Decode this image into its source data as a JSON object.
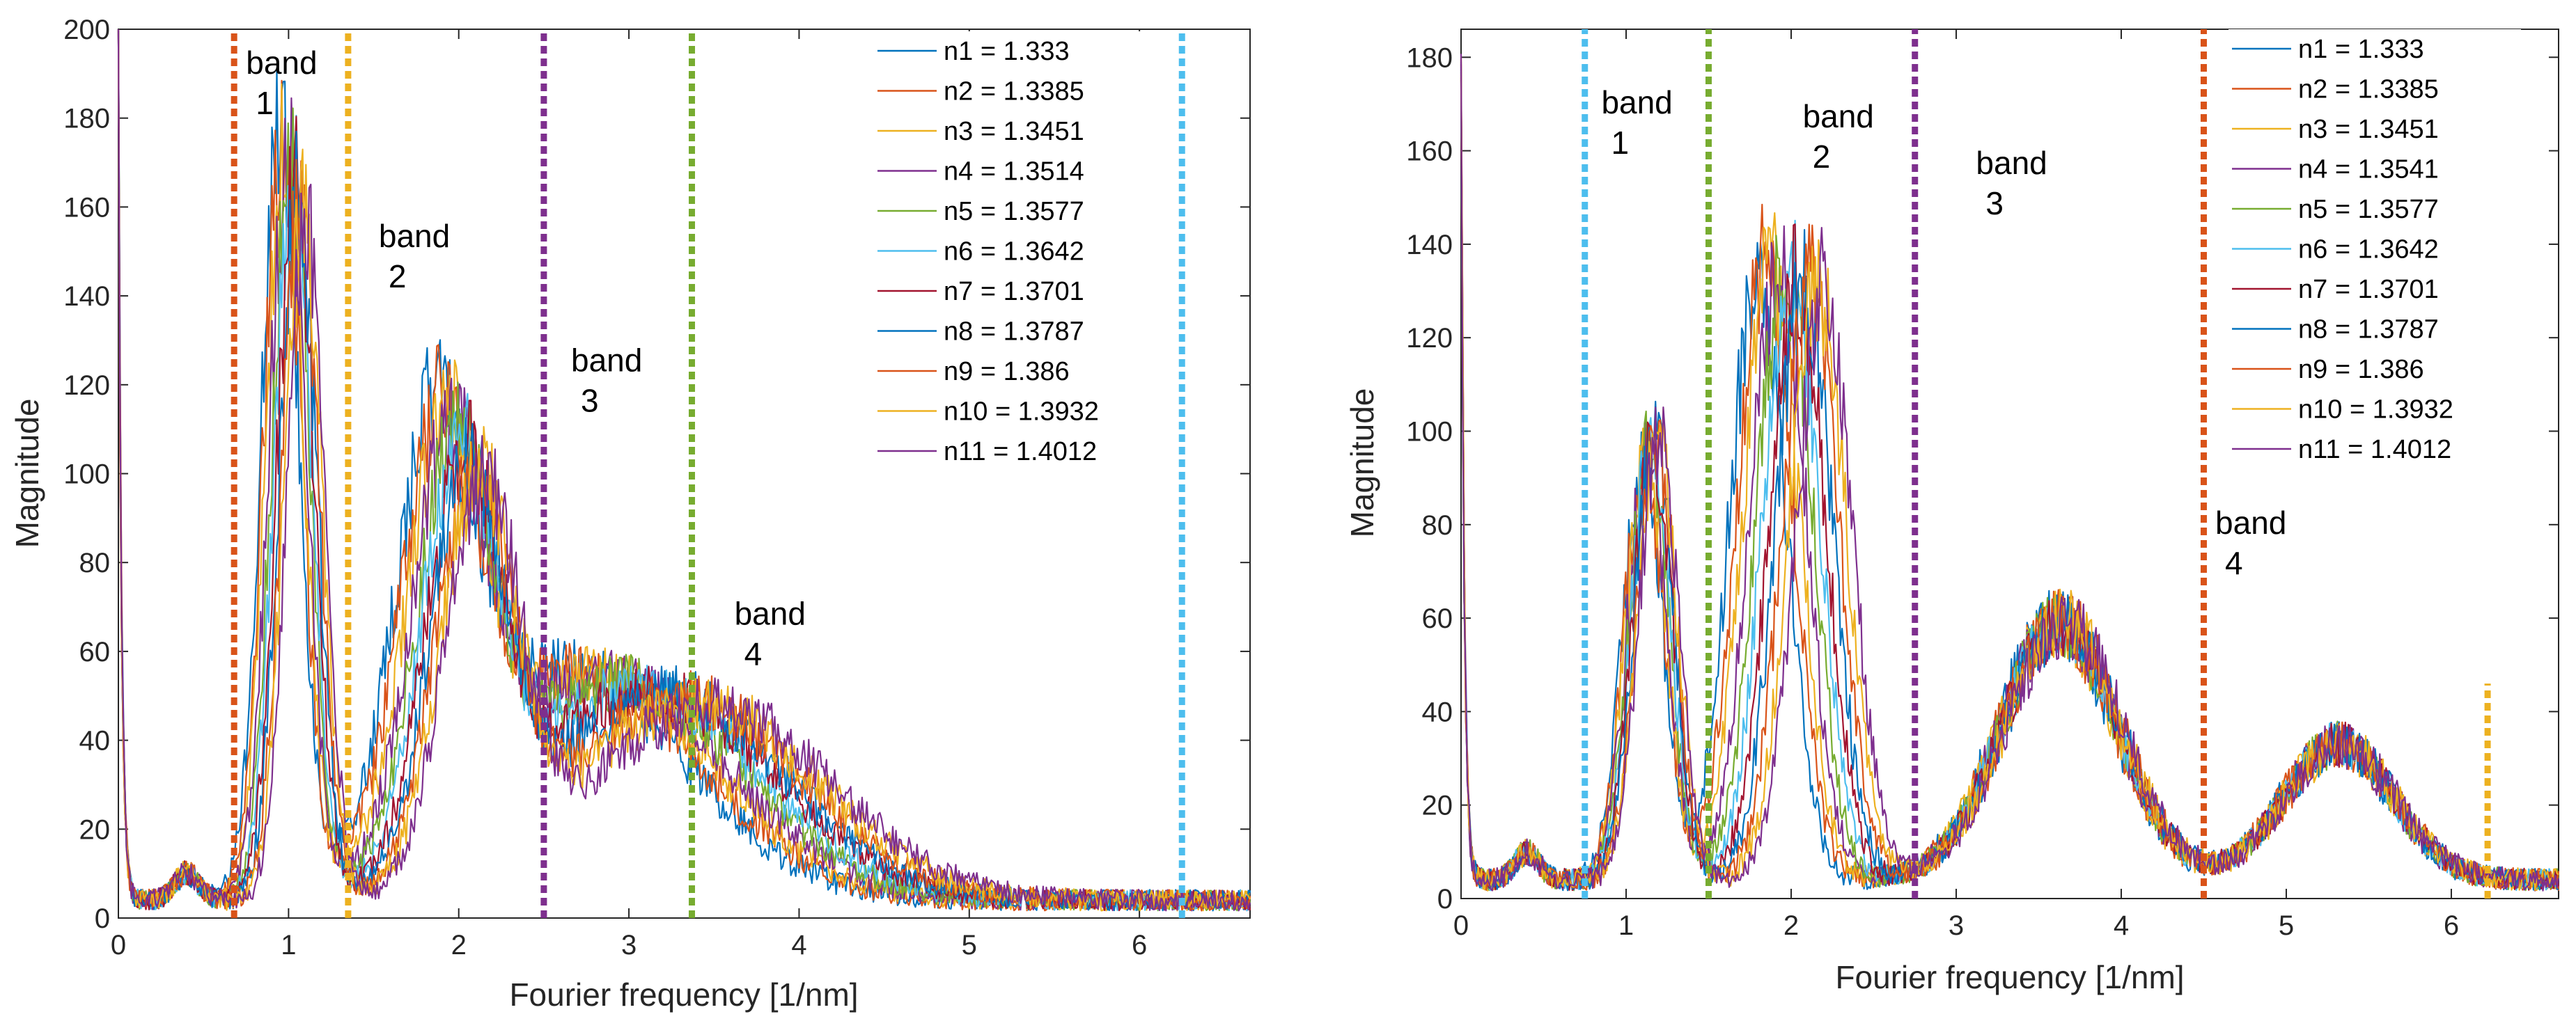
{
  "palette": [
    "#0072BD",
    "#D95319",
    "#EDB120",
    "#7E2F8E",
    "#77AC30",
    "#4DBEEE",
    "#A2142F",
    "#0072BD",
    "#D95319",
    "#EDB120",
    "#7E2F8E"
  ],
  "chart_data": [
    {
      "type": "line",
      "title": "",
      "xlabel": "Fourier frequency [1/nm]",
      "ylabel": "Magnitude",
      "xlim": [
        0,
        6.65
      ],
      "ylim": [
        0,
        200
      ],
      "xticks": [
        0,
        1,
        2,
        3,
        4,
        5,
        6
      ],
      "yticks": [
        0,
        20,
        40,
        60,
        80,
        100,
        120,
        140,
        160,
        180,
        200
      ],
      "series_names": [
        "n1 = 1.333",
        "n2 = 1.3385",
        "n3 = 1.3451",
        "n4 = 1.3514",
        "n5 = 1.3577",
        "n6 = 1.3642",
        "n7 = 1.3701",
        "n8 = 1.3787",
        "n9 = 1.386",
        "n10 = 1.3932",
        "n11 = 1.4012"
      ],
      "band_lines": [
        {
          "x": 0.68,
          "color": "#D95319",
          "y_top": 200
        },
        {
          "x": 1.35,
          "color": "#EDB120",
          "y_top": 200
        },
        {
          "x": 2.5,
          "color": "#7E2F8E",
          "y_top": 200
        },
        {
          "x": 3.37,
          "color": "#77AC30",
          "y_top": 200
        },
        {
          "x": 6.25,
          "color": "#4DBEEE",
          "y_top": 200
        }
      ],
      "band_labels": [
        {
          "line1": "band",
          "line2": "1",
          "x": 0.75,
          "y": 190
        },
        {
          "line1": "band",
          "line2": "2",
          "x": 1.53,
          "y": 151
        },
        {
          "line1": "band",
          "line2": "3",
          "x": 2.66,
          "y": 123
        },
        {
          "line1": "band",
          "line2": "4",
          "x": 3.62,
          "y": 66
        }
      ],
      "peaks": [
        {
          "center_base": 0.95,
          "center_step": 0.015,
          "amp_base": 172,
          "amp_step": -2,
          "width": 0.11
        },
        {
          "center_base": 1.86,
          "center_step": 0.028,
          "amp_base": 88,
          "amp_step": 0,
          "width": 0.22
        },
        {
          "center_base": 2.63,
          "center_step": 0.085,
          "amp_base": 52,
          "amp_step": -0.8,
          "width": 0.7
        }
      ],
      "legend_position": "top-right"
    },
    {
      "type": "line",
      "title": "",
      "xlabel": "Fourier frequency [1/nm]",
      "ylabel": "Magnitude",
      "xlim": [
        0,
        6.65
      ],
      "ylim": [
        0,
        186
      ],
      "xticks": [
        0,
        1,
        2,
        3,
        4,
        5,
        6
      ],
      "yticks": [
        0,
        20,
        40,
        60,
        80,
        100,
        120,
        140,
        160,
        180
      ],
      "series_names": [
        "n1 = 1.333",
        "n2 = 1.3385",
        "n3 = 1.3451",
        "n4 = 1.3541",
        "n5 = 1.3577",
        "n6 = 1.3642",
        "n7 = 1.3701",
        "n8 = 1.3787",
        "n9 = 1.386",
        "n10 = 1.3932",
        "n11 = 1.4012"
      ],
      "band_lines": [
        {
          "x": 0.75,
          "color": "#4DBEEE",
          "y_top": 186
        },
        {
          "x": 1.5,
          "color": "#77AC30",
          "y_top": 186
        },
        {
          "x": 2.75,
          "color": "#7E2F8E",
          "y_top": 186
        },
        {
          "x": 4.5,
          "color": "#D95319",
          "y_top": 186
        },
        {
          "x": 6.22,
          "color": "#EDB120",
          "y_top": 46
        }
      ],
      "band_labels": [
        {
          "line1": "band",
          "line2": "1",
          "x": 0.85,
          "y": 168
        },
        {
          "line1": "band",
          "line2": "2",
          "x": 2.07,
          "y": 165
        },
        {
          "line1": "band",
          "line2": "3",
          "x": 3.12,
          "y": 155
        },
        {
          "line1": "band",
          "line2": "4",
          "x": 4.57,
          "y": 78
        }
      ],
      "peaks": [
        {
          "center_base": 1.1,
          "center_step": 0.01,
          "amp_base": 90,
          "amp_step": 0.5,
          "width": 0.12
        },
        {
          "center_base": 1.8,
          "center_step": 0.04,
          "amp_base": 132,
          "amp_step": -0.5,
          "width": 0.17
        },
        {
          "center_base": 3.6,
          "center_step": 0.006,
          "amp_base": 55,
          "amp_step": 0,
          "width": 0.35
        },
        {
          "center_base": 5.3,
          "center_step": 0.004,
          "amp_base": 29,
          "amp_step": 0,
          "width": 0.33
        }
      ],
      "legend_position": "top-right"
    }
  ]
}
